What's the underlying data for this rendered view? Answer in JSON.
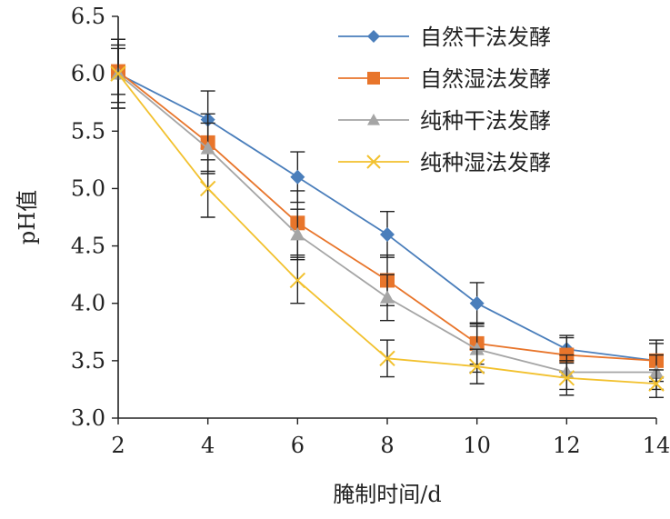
{
  "chart_data": {
    "type": "line",
    "xlabel": "腌制时间/d",
    "ylabel": "pH值",
    "x": [
      2,
      4,
      6,
      8,
      10,
      12,
      14
    ],
    "xlim": [
      2,
      14
    ],
    "ylim": [
      3.0,
      6.5
    ],
    "xticks": [
      "2",
      "4",
      "6",
      "8",
      "10",
      "12",
      "14"
    ],
    "yticks": [
      "3.0",
      "3.5",
      "4.0",
      "4.5",
      "5.0",
      "5.5",
      "6.0",
      "6.5"
    ],
    "grid": false,
    "legend_position": "top-right",
    "series": [
      {
        "name": "自然干法发酵",
        "color": "#4a7ebb",
        "marker": "diamond",
        "values": [
          6.0,
          5.6,
          5.1,
          4.6,
          4.0,
          3.6,
          3.5
        ],
        "errors": [
          0.3,
          0.25,
          0.22,
          0.2,
          0.18,
          0.12,
          0.15
        ]
      },
      {
        "name": "自然湿法发酵",
        "color": "#e8752b",
        "marker": "square",
        "values": [
          6.02,
          5.4,
          4.7,
          4.2,
          3.65,
          3.55,
          3.5
        ],
        "errors": [
          0.2,
          0.25,
          0.28,
          0.22,
          0.18,
          0.15,
          0.18
        ]
      },
      {
        "name": "纯种干法发酵",
        "color": "#a5a5a5",
        "marker": "triangle",
        "values": [
          6.0,
          5.35,
          4.6,
          4.05,
          3.6,
          3.4,
          3.4
        ],
        "errors": [
          0.3,
          0.22,
          0.22,
          0.2,
          0.2,
          0.15,
          0.15
        ]
      },
      {
        "name": "纯种湿法发酵",
        "color": "#f2c12e",
        "marker": "x",
        "values": [
          6.0,
          5.0,
          4.2,
          3.52,
          3.45,
          3.35,
          3.3
        ],
        "errors": [
          0.25,
          0.25,
          0.2,
          0.16,
          0.15,
          0.15,
          0.12
        ]
      }
    ]
  }
}
